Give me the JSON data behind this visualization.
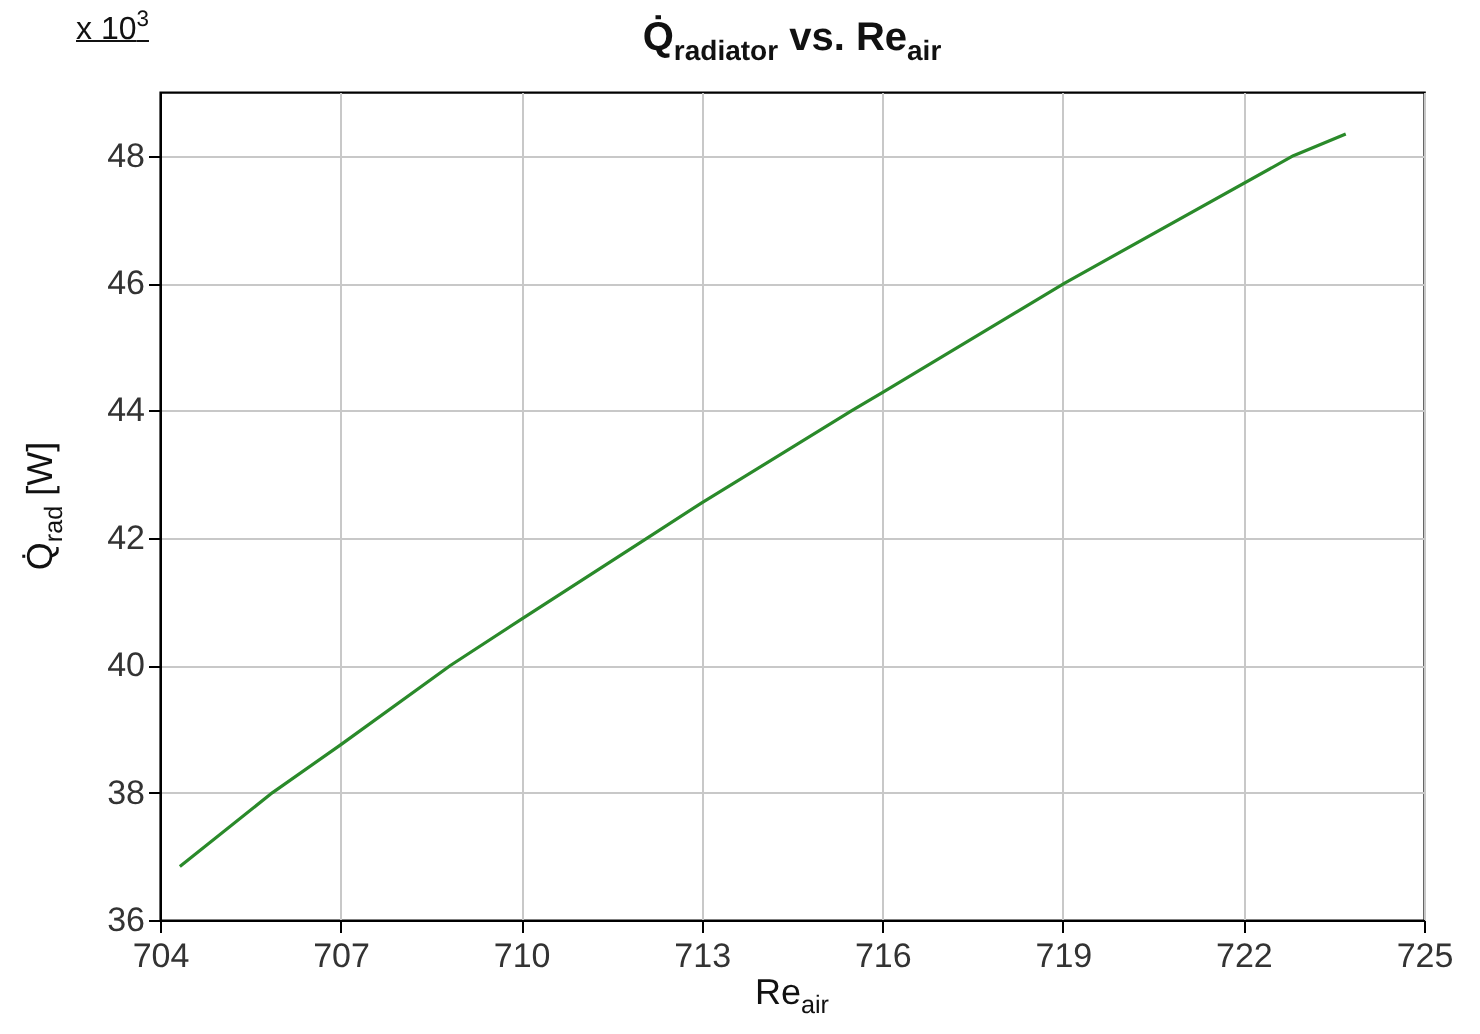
{
  "chart_data": {
    "type": "line",
    "title": "Q̇$_{radiator}$ vs. Re$_{air}$",
    "xlabel": "Re$_{air}$",
    "ylabel": "Q̇$_{rad}$  [W]",
    "annotations": [
      "x 10$^{3}$"
    ],
    "x": [
      704.33,
      705.87,
      707,
      708.83,
      710,
      712.1,
      713,
      715.5,
      716,
      719.03,
      722.83,
      723.7
    ],
    "series": [
      {
        "color": "#2a8a2a",
        "values": [
          36.84,
          38,
          38.75,
          40,
          40.72,
          42,
          42.55,
          44.0,
          44.28,
          46,
          48,
          48.34
        ]
      }
    ],
    "xlim": [
      704,
      725
    ],
    "xticks": [
      704,
      707,
      710,
      713,
      716,
      719,
      722,
      725
    ],
    "ylim": [
      36,
      49
    ],
    "yticks": [
      36,
      38,
      40,
      42,
      44,
      46,
      48
    ],
    "grid": true
  }
}
